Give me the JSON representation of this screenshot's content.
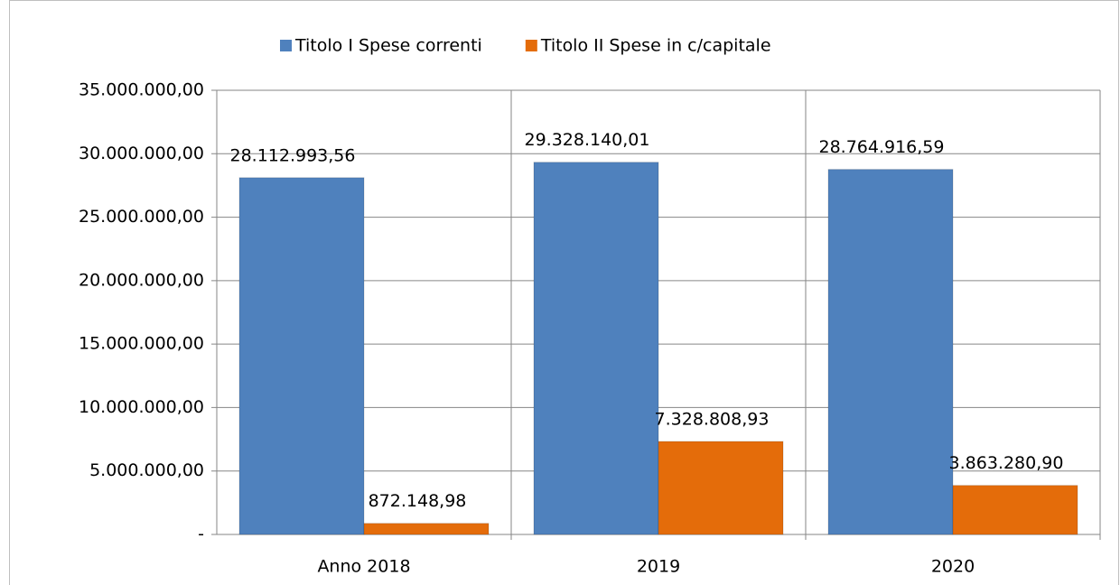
{
  "chart_data": {
    "type": "bar",
    "categories": [
      "Anno 2018",
      "2019",
      "2020"
    ],
    "series": [
      {
        "name": "Titolo I Spese correnti",
        "color": "#4f81bd",
        "values": [
          28112993.56,
          29328140.01,
          28764916.59
        ],
        "value_labels": [
          "28.112.993,56",
          "29.328.140,01",
          "28.764.916,59"
        ]
      },
      {
        "name": "Titolo II Spese in c/capitale",
        "color": "#e46c0a",
        "values": [
          872148.98,
          7328808.93,
          3863280.9
        ],
        "value_labels": [
          "872.148,98",
          "7.328.808,93",
          "3.863.280,90"
        ]
      }
    ],
    "ylim": [
      0,
      35000000
    ],
    "yticks": [
      {
        "value": 0,
        "label": "-"
      },
      {
        "value": 5000000,
        "label": "5.000.000,00"
      },
      {
        "value": 10000000,
        "label": "10.000.000,00"
      },
      {
        "value": 15000000,
        "label": "15.000.000,00"
      },
      {
        "value": 20000000,
        "label": "20.000.000,00"
      },
      {
        "value": 25000000,
        "label": "25.000.000,00"
      },
      {
        "value": 30000000,
        "label": "30.000.000,00"
      },
      {
        "value": 35000000,
        "label": "35.000.000,00"
      }
    ],
    "grid": true,
    "legend": "top"
  }
}
